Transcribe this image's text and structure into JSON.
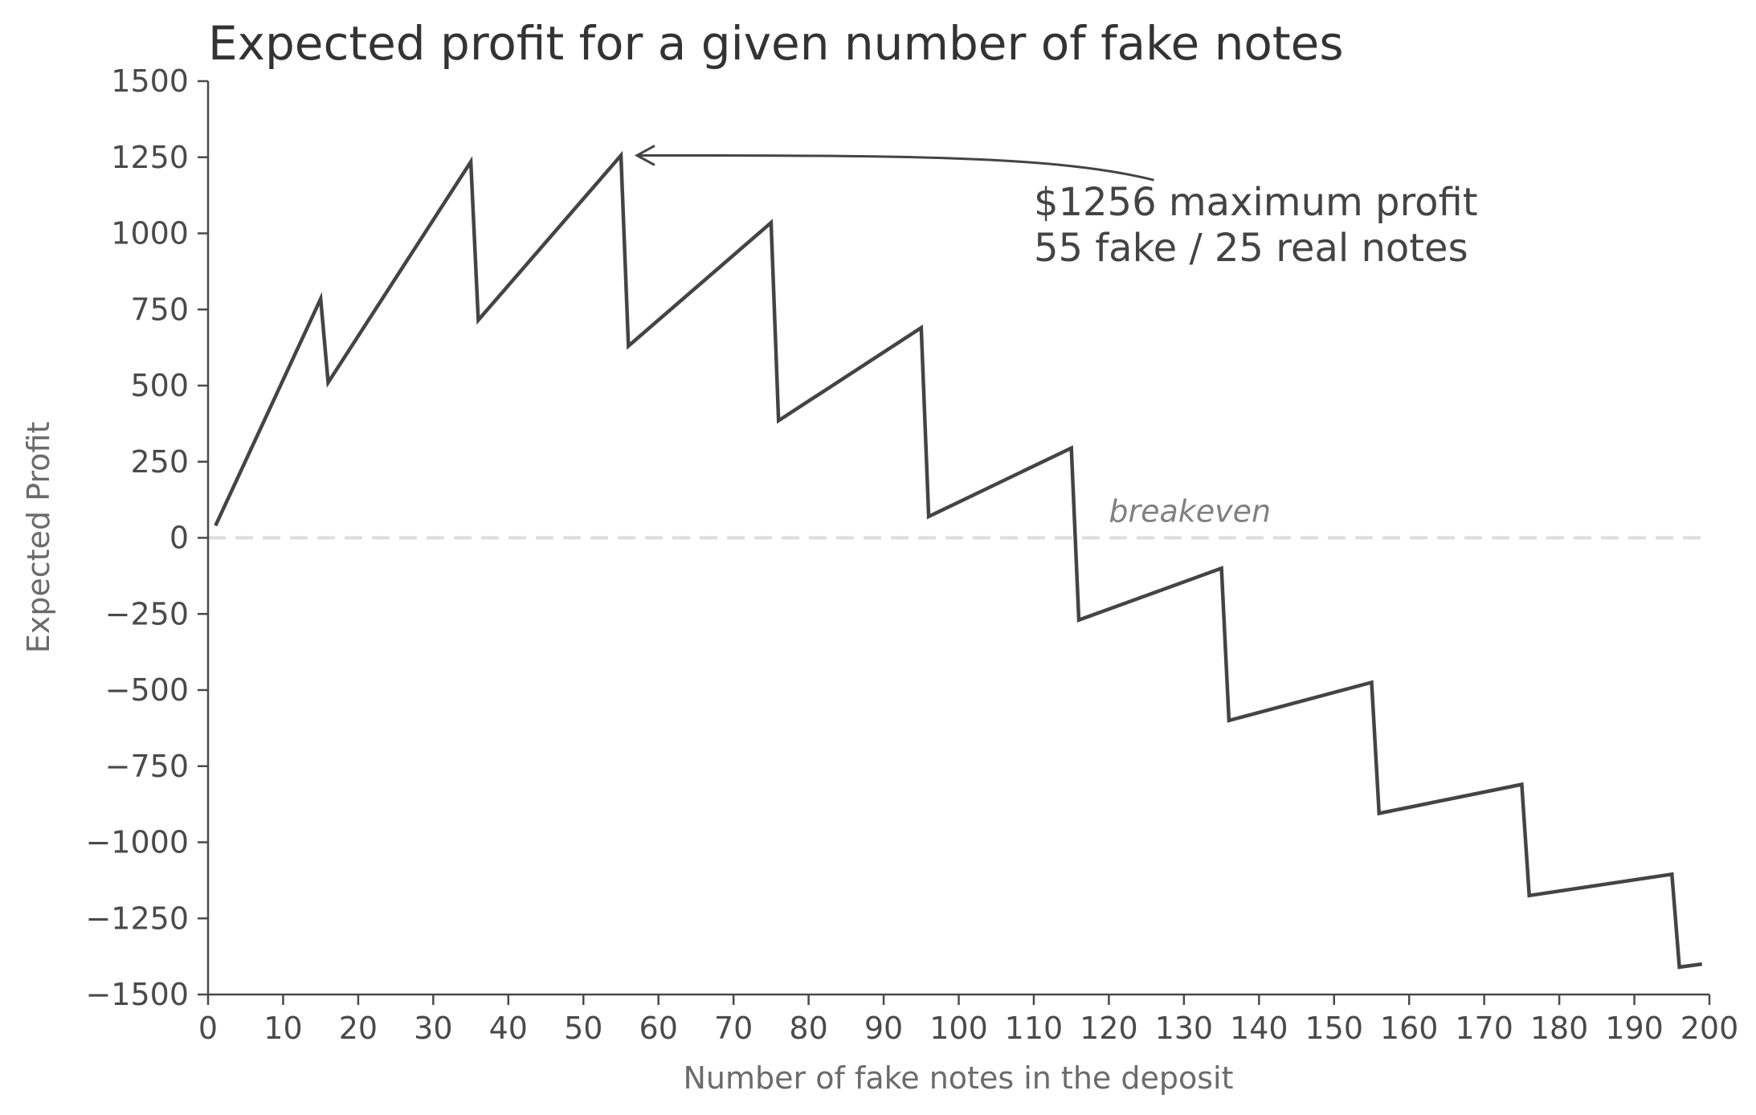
{
  "chart_data": {
    "type": "line",
    "title": "Expected profit for a given number of fake notes",
    "xlabel": "Number of fake notes in the deposit",
    "ylabel": "Expected Profit",
    "xlim": [
      0,
      200
    ],
    "ylim": [
      -1500,
      1500
    ],
    "xticks": [
      0,
      10,
      20,
      30,
      40,
      50,
      60,
      70,
      80,
      90,
      100,
      110,
      120,
      130,
      140,
      150,
      160,
      170,
      180,
      190,
      200
    ],
    "yticks": [
      1500,
      1250,
      1000,
      750,
      500,
      250,
      0,
      -250,
      -500,
      -750,
      -1000,
      -1250,
      -1500
    ],
    "ytick_labels": [
      "1500",
      "1250",
      "1000",
      "750",
      "500",
      "250",
      "0",
      "−250",
      "−500",
      "−750",
      "−1000",
      "−1250",
      "−1500"
    ],
    "series": [
      {
        "name": "Expected profit",
        "color": "#444444",
        "points": [
          [
            1,
            40
          ],
          [
            15,
            785
          ],
          [
            16,
            510
          ],
          [
            35,
            1235
          ],
          [
            36,
            715
          ],
          [
            55,
            1256
          ],
          [
            56,
            630
          ],
          [
            75,
            1035
          ],
          [
            76,
            385
          ],
          [
            95,
            690
          ],
          [
            96,
            70
          ],
          [
            115,
            295
          ],
          [
            116,
            -270
          ],
          [
            135,
            -100
          ],
          [
            136,
            -600
          ],
          [
            155,
            -475
          ],
          [
            156,
            -905
          ],
          [
            175,
            -810
          ],
          [
            176,
            -1175
          ],
          [
            195,
            -1105
          ],
          [
            196,
            -1410
          ],
          [
            199,
            -1400
          ]
        ]
      }
    ],
    "reference_line": {
      "y": 0,
      "label": "breakeven",
      "label_x": 120,
      "color": "#dddddd"
    },
    "annotation": {
      "lines": [
        "$1256 maximum profit",
        "55 fake / 25 real notes"
      ],
      "point": [
        55,
        1256
      ],
      "text_anchor": [
        110,
        1060
      ]
    }
  }
}
